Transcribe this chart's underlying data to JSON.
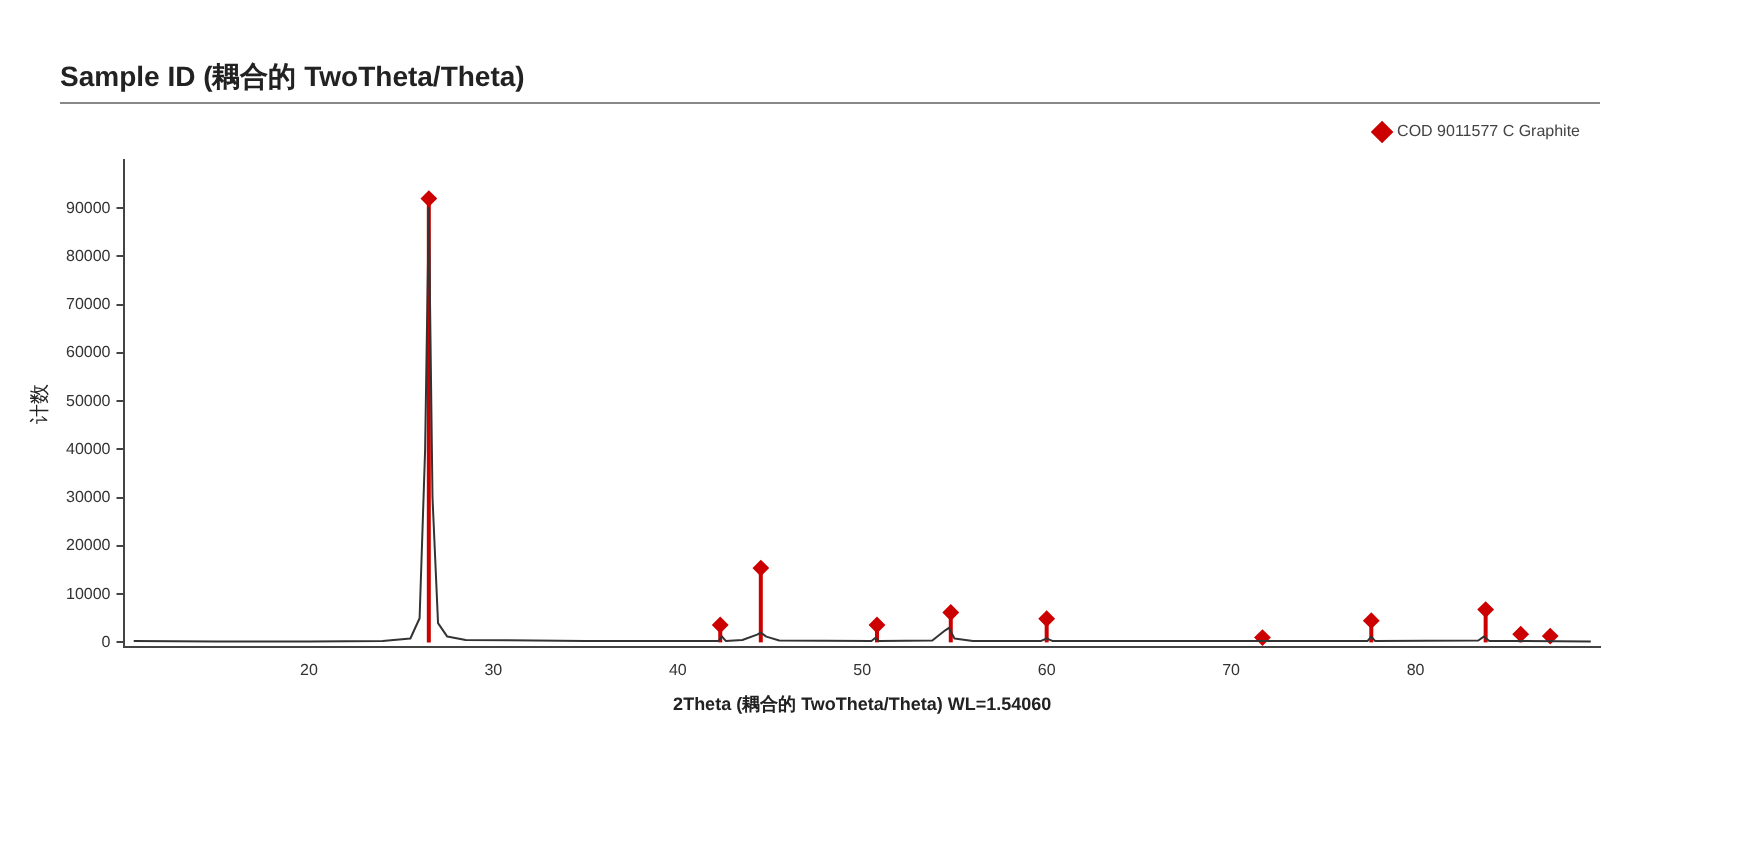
{
  "chart_data": {
    "type": "line",
    "title": "Sample ID (耦合的 TwoTheta/Theta)",
    "xlabel": "2Theta (耦合的 TwoTheta/Theta) WL=1.54060",
    "ylabel": "计数",
    "xlim": [
      10,
      90
    ],
    "xticks": [
      20,
      30,
      40,
      50,
      60,
      70,
      80
    ],
    "ylim": [
      -1000,
      100000
    ],
    "yticks": [
      0,
      10000,
      20000,
      30000,
      40000,
      50000,
      60000,
      70000,
      80000,
      90000
    ],
    "grid": false,
    "legend": "top right",
    "marker": "none",
    "series": [
      {
        "color": "#333333",
        "x": [
          10.5,
          15,
          20,
          24,
          25.5,
          26,
          26.3,
          26.5,
          26.7,
          27,
          27.5,
          28.5,
          35,
          42.2,
          42.4,
          42.6,
          43.5,
          44.3,
          44.5,
          44.8,
          45.5,
          50.5,
          50.7,
          50.9,
          53.8,
          54.5,
          54.7,
          55,
          56,
          59.7,
          60,
          60.3,
          71.5,
          77.4,
          77.6,
          77.8,
          83.4,
          83.7,
          84,
          89.5
        ],
        "values": [
          300,
          200,
          200,
          300,
          800,
          5000,
          40000,
          90000,
          30000,
          4000,
          1200,
          500,
          300,
          300,
          1200,
          300,
          500,
          1600,
          2000,
          1200,
          400,
          300,
          900,
          300,
          400,
          2500,
          3000,
          800,
          300,
          300,
          800,
          300,
          300,
          300,
          1200,
          300,
          400,
          1200,
          300,
          200
        ]
      },
      {
        "type": "lollipop",
        "name": "COD 9011577 C Graphite",
        "color": "#cc0000",
        "marker": "diamond",
        "x": [
          26.5,
          42.3,
          44.5,
          50.8,
          54.8,
          60,
          71.7,
          77.6,
          83.8,
          85.7,
          87.3
        ],
        "values": [
          92000,
          3600,
          15400,
          3600,
          6200,
          4900,
          1000,
          4500,
          6800,
          1700,
          1300
        ]
      }
    ]
  }
}
